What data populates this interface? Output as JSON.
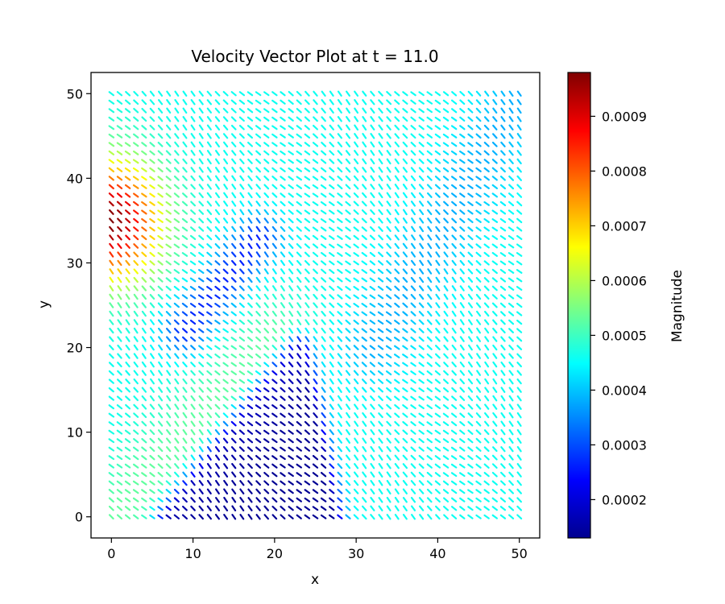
{
  "chart_data": {
    "type": "heatmap",
    "subtype": "quiver",
    "title": "Velocity Vector Plot at t = 11.0",
    "xlabel": "x",
    "ylabel": "y",
    "xlim": [
      -2.5,
      52.5
    ],
    "ylim": [
      -2.5,
      52.5
    ],
    "x_ticks": [
      0,
      10,
      20,
      30,
      40,
      50
    ],
    "x_tick_labels": [
      "0",
      "10",
      "20",
      "30",
      "40",
      "50"
    ],
    "y_ticks": [
      0,
      10,
      20,
      30,
      40,
      50
    ],
    "y_tick_labels": [
      "0",
      "10",
      "20",
      "30",
      "40",
      "50"
    ],
    "grid": false,
    "colormap": "jet",
    "colorbar": {
      "label": "Magnitude",
      "min": 0.00013,
      "max": 0.00098,
      "ticks": [
        0.0002,
        0.0003,
        0.0004,
        0.0005,
        0.0006,
        0.0007,
        0.0008,
        0.0009
      ],
      "tick_labels": [
        "0.0002",
        "0.0003",
        "0.0004",
        "0.0005",
        "0.0006",
        "0.0007",
        "0.0008",
        "0.0009"
      ]
    },
    "field": {
      "grid_x": [
        0,
        50
      ],
      "grid_y": [
        0,
        50
      ],
      "grid_spacing": 1,
      "background_magnitude": 0.00046,
      "features": [
        {
          "kind": "high",
          "center": [
            0,
            35
          ],
          "peak_magnitude": 0.00098
        },
        {
          "kind": "low",
          "region": "triangle",
          "vertices": [
            [
              7,
              0
            ],
            [
              23,
              20
            ],
            [
              27,
              0
            ]
          ],
          "min_magnitude": 0.00014
        },
        {
          "kind": "low",
          "region": "diagonal band",
          "from": [
            9,
            22
          ],
          "to": [
            18,
            33
          ],
          "min_magnitude": 0.00026
        },
        {
          "kind": "low",
          "region": "diagonal band",
          "from": [
            32,
            20
          ],
          "to": [
            50,
            50
          ],
          "min_magnitude": 0.00038
        },
        {
          "kind": "high",
          "region": "diagonal band",
          "from": [
            0,
            0
          ],
          "to": [
            20,
            21
          ],
          "peak_magnitude": 0.00053
        }
      ]
    }
  }
}
